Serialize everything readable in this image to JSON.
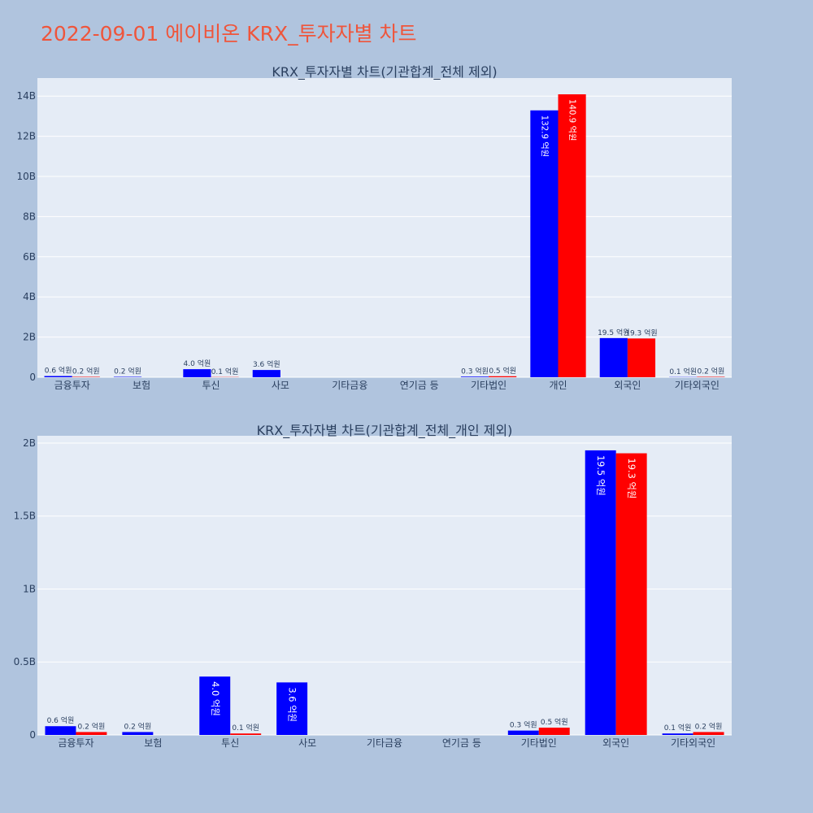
{
  "header": {
    "title": "2022-09-01 에이비온 KRX_투자자별 차트"
  },
  "colors": {
    "page_bg": "#b0c4de",
    "plot_bg": "#e5ecf6",
    "series_a": "#0000ff",
    "series_b": "#ff0000",
    "title": "#ef553b"
  },
  "chart_data": [
    {
      "type": "bar",
      "title": "KRX_투자자별 차트(기관합계_전체 제외)",
      "categories": [
        "금융투자",
        "보험",
        "투신",
        "사모",
        "기타금융",
        "연기금 등",
        "기타법인",
        "개인",
        "외국인",
        "기타외국인"
      ],
      "ylim": [
        0,
        14.9
      ],
      "yticks": [
        0,
        2,
        4,
        6,
        8,
        10,
        12,
        14
      ],
      "ytick_labels": [
        "0",
        "2B",
        "4B",
        "6B",
        "8B",
        "10B",
        "12B",
        "14B"
      ],
      "series": [
        {
          "values": [
            0.06,
            0.02,
            0.4,
            0.36,
            0,
            0,
            0.03,
            13.29,
            1.95,
            0.01
          ],
          "labels": [
            "0.6 억원",
            "0.2 억원",
            "4.0 억원",
            "3.6 억원",
            "",
            "",
            "0.3 억원",
            "132.9 억원",
            "19.5 억원",
            "0.1 억원"
          ]
        },
        {
          "values": [
            0.02,
            0,
            0.01,
            0,
            0,
            0,
            0.05,
            14.09,
            1.93,
            0.02
          ],
          "labels": [
            "0.2 억원",
            "",
            "0.1 억원",
            "",
            "",
            "",
            "0.5 억원",
            "140.9 억원",
            "19.3 억원",
            "0.2 억원"
          ]
        }
      ]
    },
    {
      "type": "bar",
      "title": "KRX_투자자별 차트(기관합계_전체_개인 제외)",
      "categories": [
        "금융투자",
        "보험",
        "투신",
        "사모",
        "기타금융",
        "연기금 등",
        "기타법인",
        "외국인",
        "기타외국인"
      ],
      "ylim": [
        0,
        2.05
      ],
      "yticks": [
        0,
        0.5,
        1,
        1.5,
        2
      ],
      "ytick_labels": [
        "0",
        "0.5B",
        "1B",
        "1.5B",
        "2B"
      ],
      "series": [
        {
          "values": [
            0.06,
            0.02,
            0.4,
            0.36,
            0,
            0,
            0.03,
            1.95,
            0.01
          ],
          "labels": [
            "0.6 억원",
            "0.2 억원",
            "4.0 억원",
            "3.6 억원",
            "",
            "",
            "0.3 억원",
            "19.5 억원",
            "0.1 억원"
          ]
        },
        {
          "values": [
            0.02,
            0,
            0.01,
            0,
            0,
            0,
            0.05,
            1.93,
            0.02
          ],
          "labels": [
            "0.2 억원",
            "",
            "0.1 억원",
            "",
            "",
            "",
            "0.5 억원",
            "19.3 억원",
            "0.2 억원"
          ]
        }
      ]
    }
  ]
}
